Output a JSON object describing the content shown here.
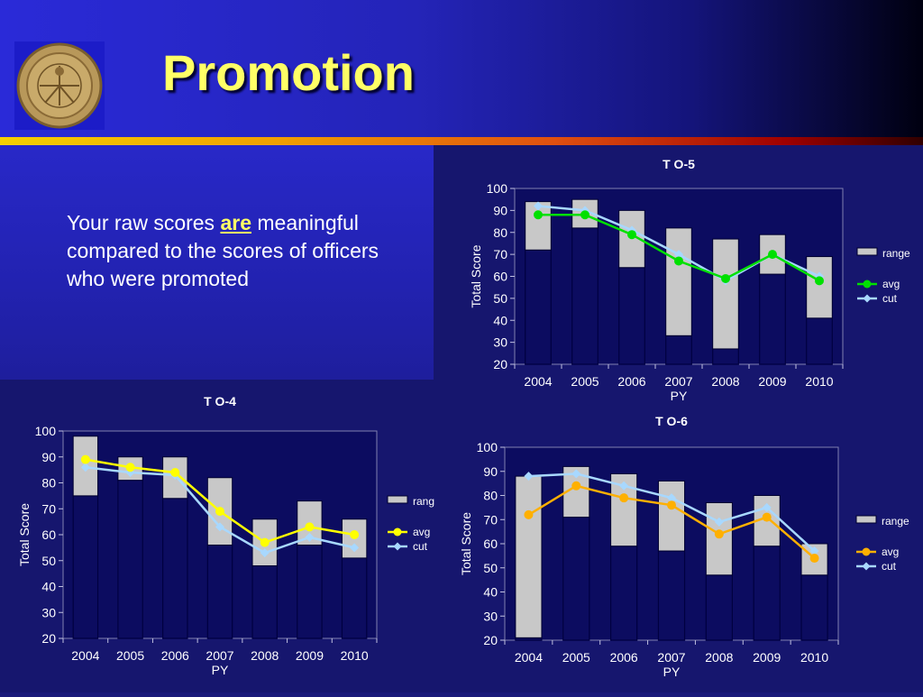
{
  "slide": {
    "title": "Promotion",
    "text_before": "Your raw scores ",
    "text_emphasis": "are",
    "text_after": " meaningful compared to the scores of officers who were promoted"
  },
  "colors": {
    "text_highlight": "#ffff66",
    "range_fill": "#c8c8c8",
    "cut_line": "#a8d8ff",
    "avg_green": "#00e000",
    "avg_yellow": "#ffff00",
    "avg_orange": "#ffb000"
  },
  "chart_data": [
    {
      "id": "to5",
      "type": "line",
      "title": "T O-5",
      "xlabel": "PY",
      "ylabel": "Total Score",
      "categories": [
        "2004",
        "2005",
        "2006",
        "2007",
        "2008",
        "2009",
        "2010"
      ],
      "ylim": [
        20,
        100
      ],
      "yticks": [
        20,
        30,
        40,
        50,
        60,
        70,
        80,
        90,
        100
      ],
      "range": {
        "name": "range",
        "low": [
          72,
          82,
          64,
          33,
          27,
          61,
          41
        ],
        "high": [
          94,
          95,
          90,
          82,
          77,
          79,
          69
        ]
      },
      "series": [
        {
          "name": "avg",
          "values": [
            88,
            88,
            79,
            67,
            59,
            70,
            58
          ],
          "color": "#00e000",
          "marker": "circle"
        },
        {
          "name": "cut",
          "values": [
            92,
            90,
            81,
            70,
            58,
            70,
            60
          ],
          "color": "#a8d8ff",
          "marker": "diamond"
        }
      ],
      "legend": "right"
    },
    {
      "id": "to4",
      "type": "line",
      "title": "T O-4",
      "xlabel": "PY",
      "ylabel": "Total Score",
      "categories": [
        "2004",
        "2005",
        "2006",
        "2007",
        "2008",
        "2009",
        "2010"
      ],
      "ylim": [
        20,
        100
      ],
      "yticks": [
        20,
        30,
        40,
        50,
        60,
        70,
        80,
        90,
        100
      ],
      "range": {
        "name": "rang",
        "low": [
          75,
          81,
          74,
          56,
          48,
          56,
          51
        ],
        "high": [
          98,
          90,
          90,
          82,
          66,
          73,
          66
        ]
      },
      "series": [
        {
          "name": "avg",
          "values": [
            89,
            86,
            84,
            69,
            57,
            63,
            60
          ],
          "color": "#ffff00",
          "marker": "circle"
        },
        {
          "name": "cut",
          "values": [
            86,
            84,
            83,
            63,
            53,
            59,
            55
          ],
          "color": "#a8d8ff",
          "marker": "diamond"
        }
      ],
      "legend": "right"
    },
    {
      "id": "to6",
      "type": "line",
      "title": "T O-6",
      "xlabel": "PY",
      "ylabel": "Total Score",
      "categories": [
        "2004",
        "2005",
        "2006",
        "2007",
        "2008",
        "2009",
        "2010"
      ],
      "ylim": [
        20,
        100
      ],
      "yticks": [
        20,
        30,
        40,
        50,
        60,
        70,
        80,
        90,
        100
      ],
      "range": {
        "name": "range",
        "low": [
          21,
          71,
          59,
          57,
          47,
          59,
          47
        ],
        "high": [
          88,
          92,
          89,
          86,
          77,
          80,
          60
        ]
      },
      "series": [
        {
          "name": "avg",
          "values": [
            72,
            84,
            79,
            76,
            64,
            71,
            54
          ],
          "color": "#ffb000",
          "marker": "circle"
        },
        {
          "name": "cut",
          "values": [
            88,
            89,
            84,
            79,
            69,
            75,
            57
          ],
          "color": "#a8d8ff",
          "marker": "diamond"
        }
      ],
      "legend": "right"
    }
  ]
}
